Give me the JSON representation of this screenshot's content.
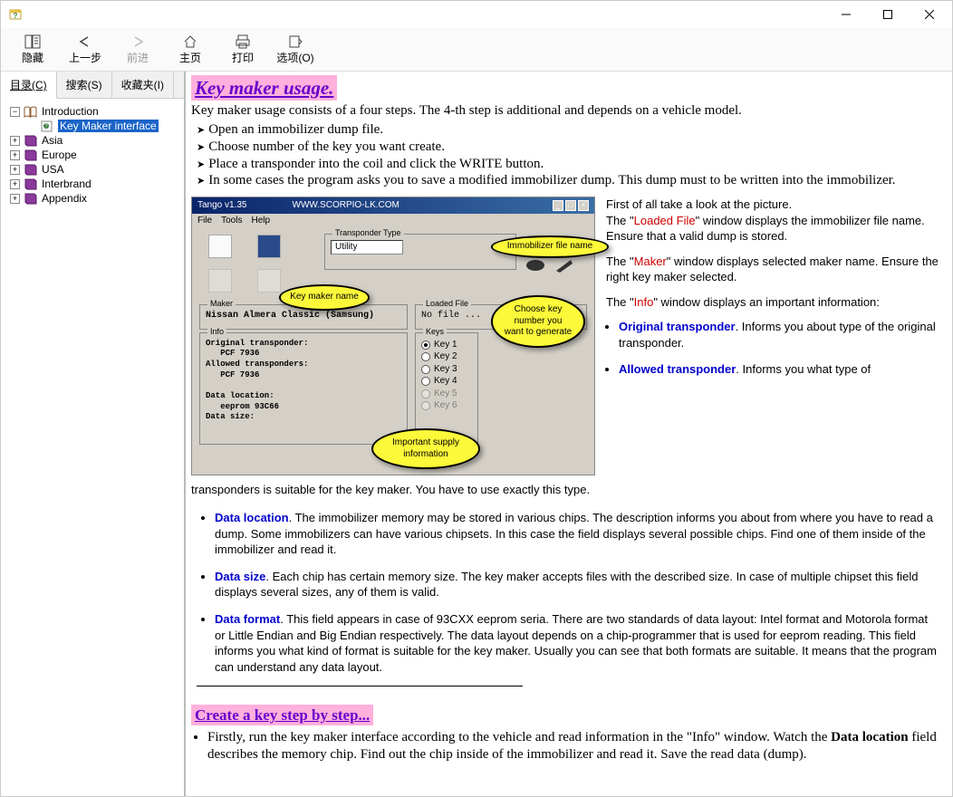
{
  "window": {
    "app_icon_color": "#e8c040"
  },
  "toolbar": {
    "items": [
      {
        "label": "隐藏",
        "disabled": false
      },
      {
        "label": "上一步",
        "disabled": false
      },
      {
        "label": "前进",
        "disabled": true
      },
      {
        "label": "主页",
        "disabled": false
      },
      {
        "label": "打印",
        "disabled": false
      },
      {
        "label": "选项(O)",
        "disabled": false
      }
    ]
  },
  "tabs": {
    "contents": "目录(C)",
    "search": "搜索(S)",
    "favorites": "收藏夹(I)"
  },
  "tree": {
    "nodes": [
      {
        "level": 0,
        "expander": "−",
        "icon": "book-open",
        "label": "Introduction",
        "selected": false
      },
      {
        "level": 1,
        "expander": "",
        "icon": "page",
        "label": "Key Maker interface",
        "selected": true
      },
      {
        "level": 0,
        "expander": "+",
        "icon": "book",
        "label": "Asia",
        "selected": false
      },
      {
        "level": 0,
        "expander": "+",
        "icon": "book",
        "label": "Europe",
        "selected": false
      },
      {
        "level": 0,
        "expander": "+",
        "icon": "book",
        "label": "USA",
        "selected": false
      },
      {
        "level": 0,
        "expander": "+",
        "icon": "book",
        "label": "Interbrand",
        "selected": false
      },
      {
        "level": 0,
        "expander": "+",
        "icon": "book",
        "label": "Appendix",
        "selected": false
      }
    ]
  },
  "content": {
    "heading": "Key maker usage.",
    "intro": "Key maker usage consists of a four steps. The 4-th step is additional and depends on a vehicle model.",
    "steps": [
      "Open an immobilizer dump file.",
      "Choose number of the key you want create.",
      "Place a transponder into the coil and click the WRITE button.",
      "In some cases the program asks you to save a modified immobilizer dump. This dump must to be written into the immobilizer."
    ],
    "screenshot": {
      "title": "Tango   v1.35",
      "url": "WWW.SCORPIO-LK.COM",
      "menu": [
        "File",
        "Tools",
        "Help"
      ],
      "transponder_type_label": "Transponder Type",
      "transponder_type_value": "Utility",
      "loaded_file_label": "Loaded File",
      "loaded_file_value": "No file ...",
      "maker_label": "Maker",
      "maker_value": "Nissan Almera Classic (Samsung)",
      "keys_label": "Keys",
      "keys": [
        "Key 1",
        "Key 2",
        "Key 3",
        "Key 4",
        "Key 5",
        "Key 6"
      ],
      "info_label": "Info",
      "info_lines": [
        "Original transponder:",
        "   PCF 7936",
        "Allowed transponders:",
        "   PCF 7936",
        "",
        "Data location:",
        "   eeprom 93C66",
        "Data size:"
      ],
      "callouts": {
        "immo": "Immobilizer file name",
        "maker": "Key maker name",
        "keys": "Choose key number you want to generate",
        "info": "Important supply information"
      }
    },
    "side": {
      "p1a": "First of all take a look at the picture.",
      "p1b_pre": "The \"",
      "p1b_term": "Loaded File",
      "p1b_post": "\" window displays the immobilizer file name. Ensure that a valid dump is stored.",
      "p2_pre": "The \"",
      "p2_term": "Maker",
      "p2_post": "\" window displays selected maker name. Ensure the right key maker selected.",
      "p3_pre": "The \"",
      "p3_term": "Info",
      "p3_post": "\" window displays an important information:",
      "orig_t": "Original transponder",
      "orig_d": ". Informs you about type of the original transponder.",
      "allow_t": "Allowed transponder",
      "allow_d": ". Informs you what type of"
    },
    "allow_cont": "transponders is suitable for the key maker. You have to use exactly this type.",
    "bullets": [
      {
        "term": "Data location",
        "text": ". The immobilizer memory may be stored in various chips. The description informs you about from where you have to read a dump. Some immobilizers can have various chipsets. In this case the field displays several possible chips. Find one of them inside of the immobilizer and read it."
      },
      {
        "term": "Data size",
        "text": ". Each chip has certain memory size. The key maker accepts files with the described size. In case of multiple chipset this field displays several sizes, any of them is valid."
      },
      {
        "term": "Data format",
        "text": ". This field appears in case of 93CXX eeprom seria. There are two standards of data layout: Intel format and Motorola format or Little Endian and Big Endian respectively. The data layout depends on a chip-programmer that is used for eeprom reading. This field informs you what kind of format is suitable for the key maker. Usually you can see that both formats are suitable. It means that the program can understand any data layout."
      }
    ],
    "subheading": "Create a key step by step...",
    "steps2_a": "Firstly, run the key maker interface according to the vehicle and read information in the \"Info\" window. Watch the ",
    "steps2_b": "Data location",
    "steps2_c": " field describes the memory chip. Find out the chip inside of the immobilizer and read it. Save the read data (dump)."
  }
}
